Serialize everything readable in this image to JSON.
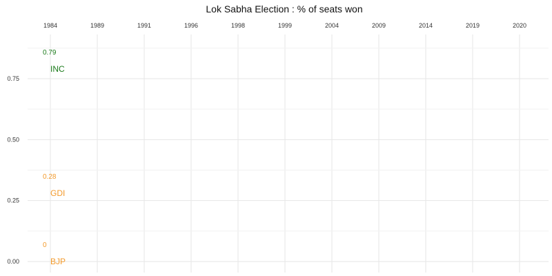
{
  "chart_data": {
    "type": "scatter",
    "title": "Lok Sabha Election : % of seats won",
    "x_categories": [
      "1984",
      "1989",
      "1991",
      "1996",
      "1998",
      "1999",
      "2004",
      "2009",
      "2014",
      "2019",
      "2020"
    ],
    "x_axis_position": "top",
    "ylim": [
      0,
      0.85
    ],
    "y_ticks": [
      0.0,
      0.25,
      0.5,
      0.75
    ],
    "y_tick_labels": [
      "0.00",
      "0.25",
      "0.50",
      "0.75"
    ],
    "grid": true,
    "series": [
      {
        "name": "INC",
        "color": "#1a7a1a",
        "points": [
          {
            "x": "1984",
            "y": 0.79,
            "label": "0.79"
          }
        ]
      },
      {
        "name": "GDI",
        "color": "#f39a2b",
        "points": [
          {
            "x": "1984",
            "y": 0.28,
            "label": "0.28"
          }
        ]
      },
      {
        "name": "BJP",
        "color": "#f39a2b",
        "points": [
          {
            "x": "1984",
            "y": 0.0,
            "label": "0"
          }
        ]
      }
    ]
  }
}
